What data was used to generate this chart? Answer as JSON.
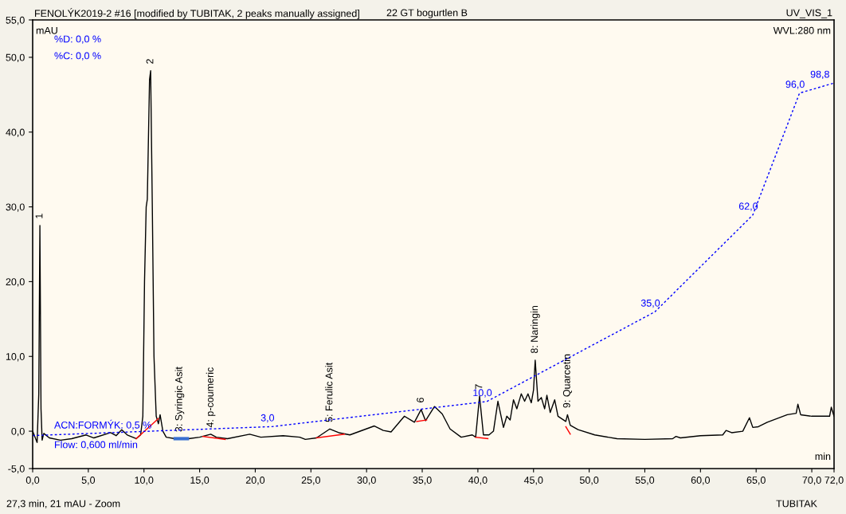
{
  "chart_data": {
    "type": "line",
    "title": "FENOLÝK2019-2 #16 [modified by TUBITAK, 2 peaks manually assigned]",
    "subtitle": "22 GT bogurtlen B",
    "xlabel": "min",
    "ylabel": "mAU",
    "xlim": [
      0,
      72
    ],
    "ylim": [
      -5,
      55
    ],
    "xticks": [
      {
        "value": 0,
        "label": "0,0"
      },
      {
        "value": 5,
        "label": "5,0"
      },
      {
        "value": 10,
        "label": "10,0"
      },
      {
        "value": 15,
        "label": "15,0"
      },
      {
        "value": 20,
        "label": "20,0"
      },
      {
        "value": 25,
        "label": "25,0"
      },
      {
        "value": 30,
        "label": "30,0"
      },
      {
        "value": 35,
        "label": "35,0"
      },
      {
        "value": 40,
        "label": "40,0"
      },
      {
        "value": 45,
        "label": "45,0"
      },
      {
        "value": 50,
        "label": "50,0"
      },
      {
        "value": 55,
        "label": "55,0"
      },
      {
        "value": 60,
        "label": "60,0"
      },
      {
        "value": 65,
        "label": "65,0"
      },
      {
        "value": 70,
        "label": "70,0"
      },
      {
        "value": 72,
        "label": "72,0"
      }
    ],
    "yticks": [
      {
        "value": -5,
        "label": "-5,0"
      },
      {
        "value": 0,
        "label": "0,0"
      },
      {
        "value": 10,
        "label": "10,0"
      },
      {
        "value": 20,
        "label": "20,0"
      },
      {
        "value": 30,
        "label": "30,0"
      },
      {
        "value": 40,
        "label": "40,0"
      },
      {
        "value": 50,
        "label": "50,0"
      },
      {
        "value": 55,
        "label": "55,0"
      }
    ],
    "y2lim": [
      -8.7,
      116.4
    ],
    "tick_labels": [
      "x",
      "y"
    ],
    "grid": false,
    "marker": "none",
    "series": [
      {
        "color": "#000000",
        "line_style": "solid",
        "x": [
          0,
          0.4,
          0.55,
          0.65,
          0.75,
          0.85,
          1.0,
          1.5,
          2.5,
          3.5,
          4.8,
          5.5,
          7.0,
          7.5,
          8.0,
          8.5,
          9.3,
          9.7,
          9.9,
          10.05,
          10.2,
          10.3,
          10.5,
          10.6,
          10.75,
          10.9,
          11.1,
          11.3,
          11.45,
          11.7,
          12.0,
          12.8,
          14.0,
          15.0,
          16.0,
          16.5,
          17.5,
          19.5,
          20.5,
          22.5,
          24.0,
          24.5,
          25.5,
          26.7,
          27.5,
          28.5,
          30.7,
          31.5,
          32.2,
          33.4,
          34.3,
          34.9,
          35.3,
          36.1,
          36.8,
          37.5,
          38.5,
          39.5,
          39.8,
          40.15,
          40.5,
          41.0,
          41.4,
          41.8,
          42.3,
          42.6,
          42.9,
          43.2,
          43.5,
          43.9,
          44.2,
          44.5,
          44.8,
          45.0,
          45.15,
          45.4,
          45.7,
          46.0,
          46.2,
          46.5,
          46.9,
          47.2,
          47.9,
          48.05,
          48.3,
          49.0,
          50.5,
          52.5,
          55.0,
          57.5,
          57.8,
          58.2,
          60.0,
          62.0,
          62.3,
          62.8,
          63.8,
          64.4,
          64.7,
          65.2,
          66.0,
          67.8,
          68.6,
          68.75,
          69.0,
          70.0,
          71.6,
          71.75,
          72.0
        ],
        "values": [
          0.0,
          -1.5,
          5.0,
          27.5,
          3.0,
          -1.2,
          -0.3,
          -0.9,
          -1.2,
          -1.0,
          -0.5,
          -0.9,
          -0.2,
          -0.6,
          0.2,
          -0.5,
          -1.0,
          -0.5,
          2.0,
          20.0,
          30.0,
          31.0,
          47.0,
          48.2,
          30.0,
          10.0,
          2.0,
          1.0,
          2.2,
          0.0,
          -0.8,
          -1.0,
          -1.0,
          -0.8,
          -0.4,
          -0.8,
          -1.0,
          -0.4,
          -0.8,
          -0.6,
          -0.8,
          -1.1,
          -0.9,
          0.3,
          -0.2,
          -0.5,
          0.7,
          0.1,
          -0.1,
          2.0,
          1.2,
          2.9,
          1.4,
          3.3,
          2.3,
          0.3,
          -0.8,
          -0.5,
          -0.8,
          4.7,
          -0.5,
          -0.5,
          0.0,
          4.0,
          0.5,
          2.0,
          1.5,
          4.2,
          3.0,
          5.0,
          4.0,
          5.0,
          3.8,
          5.5,
          9.5,
          4.0,
          4.5,
          3.0,
          4.8,
          2.5,
          4.2,
          2.0,
          1.3,
          2.2,
          0.8,
          0.2,
          -0.5,
          -1.0,
          -1.1,
          -1.0,
          -0.7,
          -0.9,
          -0.6,
          -0.5,
          0.1,
          -0.2,
          0.0,
          1.8,
          0.5,
          0.6,
          1.2,
          2.2,
          2.4,
          3.6,
          2.2,
          2.0,
          2.0,
          3.2,
          2.0
        ]
      },
      {
        "color": "#0000ff",
        "line_style": "dashed",
        "axis": "y2",
        "x": [
          0,
          21.5,
          40.8,
          55.9,
          64.7,
          68.9,
          72.0
        ],
        "values": [
          0.5,
          3.0,
          10.0,
          35.0,
          62.0,
          96.0,
          98.8
        ],
        "value_labels": [
          null,
          "3,0",
          "10,0",
          "35,0",
          "62,0",
          "96,0",
          "98,8"
        ]
      },
      {
        "color": "#ff0000",
        "line_style": "solid",
        "x": [
          9.3,
          11.3
        ],
        "values": [
          -1.0,
          1.7
        ]
      },
      {
        "color": "#ff0000",
        "line_style": "solid",
        "x": [
          15.3,
          17.3
        ],
        "values": [
          -0.7,
          -1.1
        ]
      },
      {
        "color": "#ff0000",
        "line_style": "solid",
        "x": [
          25.5,
          28.0
        ],
        "values": [
          -0.9,
          -0.4
        ]
      },
      {
        "color": "#ff0000",
        "line_style": "solid",
        "x": [
          34.5,
          35.4
        ],
        "values": [
          1.3,
          1.5
        ]
      },
      {
        "color": "#ff0000",
        "line_style": "solid",
        "x": [
          39.8,
          40.9
        ],
        "values": [
          -0.8,
          -1.0
        ]
      },
      {
        "color": "#ff0000",
        "line_style": "solid",
        "x": [
          47.9,
          48.3
        ],
        "values": [
          0.6,
          -0.4
        ]
      },
      {
        "color": "#3a6fd0",
        "line_style": "solid",
        "x": [
          12.8,
          13.9
        ],
        "values": [
          -1.0,
          -1.0
        ]
      }
    ],
    "annotations": [
      "UV_VIS_1",
      "WVL:280 nm",
      "%D: 0,0 %",
      "%C: 0,0 %",
      "ACN:FORMÝK: 0,5 %",
      "Flow: 0,600 ml/min",
      "27,3 min, 21 mAU - Zoom",
      "TUBITAK",
      {
        "text": "1",
        "x": 0.65,
        "y": 27.5
      },
      {
        "text": "2",
        "x": 10.6,
        "y": 48.2
      },
      {
        "text": "3: Syringic Asit",
        "x": 13.2,
        "y": -1.0
      },
      {
        "text": "4: p-coumeric",
        "x": 16.0,
        "y": -0.4
      },
      {
        "text": "5: Ferulic Asit",
        "x": 26.7,
        "y": 0.3
      },
      {
        "text": "6",
        "x": 34.9,
        "y": 2.9
      },
      {
        "text": "7",
        "x": 40.15,
        "y": 4.7
      },
      {
        "text": "8: Naringin",
        "x": 45.15,
        "y": 9.5
      },
      {
        "text": "9: Quarcetin",
        "x": 48.05,
        "y": 2.2
      }
    ]
  }
}
